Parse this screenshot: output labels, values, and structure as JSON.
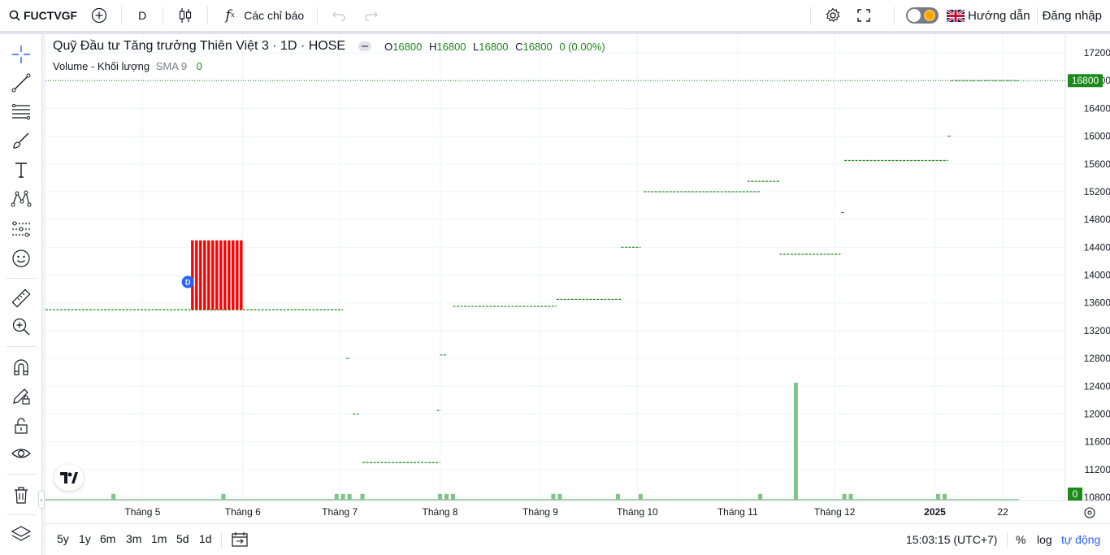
{
  "topbar": {
    "symbol": "FUCTVGF",
    "interval": "D",
    "indicators_label": "Các chỉ báo",
    "guide_label": "Hướng dẫn",
    "login_label": "Đăng nhập"
  },
  "legend": {
    "title": "Quỹ Đầu tư Tăng trưởng Thiên Việt 3 · 1D · HOSE",
    "o_key": "O",
    "o_val": "16800",
    "h_key": "H",
    "h_val": "16800",
    "l_key": "L",
    "l_val": "16800",
    "c_key": "C",
    "c_val": "16800",
    "change": "0 (0.00%)",
    "volume_label": "Volume - Khối lượng",
    "sma_label": "SMA 9",
    "volume_value": "0"
  },
  "bottombar": {
    "ranges": [
      "5y",
      "1y",
      "6m",
      "3m",
      "1m",
      "5d",
      "1d"
    ],
    "time": "15:03:15 (UTC+7)",
    "percent": "%",
    "log": "log",
    "auto": "tự động"
  },
  "colors": {
    "up": "#1b8a1b",
    "down": "#ff0000",
    "volume": "#7fc488",
    "accent": "#2962ff",
    "price_label_bg": "#1b8a1b"
  },
  "chart_data": {
    "type": "bar",
    "title": "",
    "ylim": [
      10800,
      17200
    ],
    "yticks": [
      17200,
      16800,
      16400,
      16000,
      15600,
      15200,
      14800,
      14400,
      14000,
      13600,
      13200,
      12800,
      12400,
      12000,
      11600,
      11200,
      10800
    ],
    "xticks": [
      "Tháng 5",
      "Tháng 6",
      "Tháng 7",
      "Tháng 8",
      "Tháng 9",
      "Tháng 10",
      "Tháng 11",
      "Tháng 12",
      "2025",
      "22"
    ],
    "last_price": "16800",
    "last_volume": "0",
    "dividend_marker": "D",
    "price_segments": [
      {
        "from": "2024-04-01",
        "to": "2024-07-02",
        "price": 13500
      },
      {
        "from": "2024-05-16",
        "to": "2024-06-01",
        "low": 13500,
        "high": 14500,
        "direction": "down"
      },
      {
        "from": "2024-07-03",
        "to": "2024-07-03",
        "price": 12800
      },
      {
        "from": "2024-07-05",
        "to": "2024-07-07",
        "price": 12000
      },
      {
        "from": "2024-07-08",
        "to": "2024-08-01",
        "price": 11300
      },
      {
        "from": "2024-07-31",
        "to": "2024-07-31",
        "price": 12050
      },
      {
        "from": "2024-08-01",
        "to": "2024-08-03",
        "price": 12850
      },
      {
        "from": "2024-08-05",
        "to": "2024-09-06",
        "price": 13550
      },
      {
        "from": "2024-09-06",
        "to": "2024-09-26",
        "price": 13650
      },
      {
        "from": "2024-09-26",
        "to": "2024-10-02",
        "price": 14400
      },
      {
        "from": "2024-10-03",
        "to": "2024-11-08",
        "price": 15200
      },
      {
        "from": "2024-11-04",
        "to": "2024-11-14",
        "price": 15350
      },
      {
        "from": "2024-11-14",
        "to": "2024-12-03",
        "price": 14300
      },
      {
        "from": "2024-12-03",
        "to": "2024-12-04",
        "price": 14900
      },
      {
        "from": "2024-12-04",
        "to": "2025-01-05",
        "price": 15650
      },
      {
        "from": "2025-01-05",
        "to": "2025-01-06",
        "price": 16000
      },
      {
        "from": "2025-01-06",
        "to": "2025-01-27",
        "price": 16800
      }
    ],
    "volume_spikes": [
      {
        "date": "2024-04-22",
        "value": 1
      },
      {
        "date": "2024-05-26",
        "value": 1
      },
      {
        "date": "2024-06-30",
        "value": 1
      },
      {
        "date": "2024-07-02",
        "value": 1
      },
      {
        "date": "2024-07-04",
        "value": 1
      },
      {
        "date": "2024-07-08",
        "value": 1
      },
      {
        "date": "2024-08-01",
        "value": 1
      },
      {
        "date": "2024-08-03",
        "value": 1
      },
      {
        "date": "2024-08-05",
        "value": 1
      },
      {
        "date": "2024-09-05",
        "value": 1
      },
      {
        "date": "2024-09-07",
        "value": 1
      },
      {
        "date": "2024-09-25",
        "value": 1
      },
      {
        "date": "2024-10-02",
        "value": 1
      },
      {
        "date": "2024-11-08",
        "value": 1
      },
      {
        "date": "2024-11-19",
        "value": 20
      },
      {
        "date": "2024-12-04",
        "value": 1
      },
      {
        "date": "2024-12-06",
        "value": 1
      },
      {
        "date": "2025-01-02",
        "value": 1
      },
      {
        "date": "2025-01-04",
        "value": 1
      }
    ]
  }
}
